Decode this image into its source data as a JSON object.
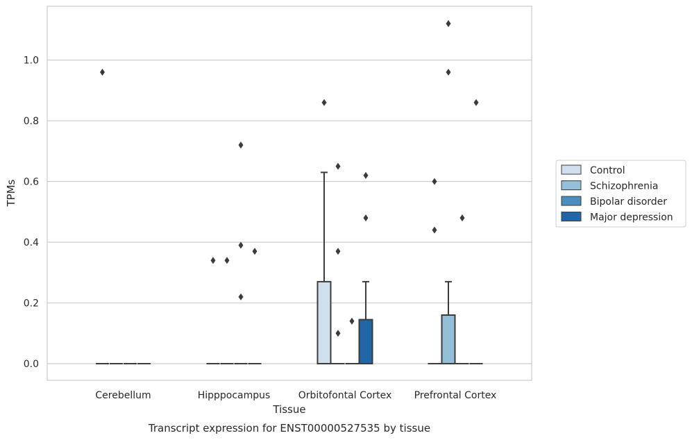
{
  "chart_data": {
    "type": "box",
    "title": "",
    "xlabel": "Tissue",
    "ylabel": "TPMs",
    "caption": "Transcript expression for ENST00000527535 by tissue",
    "ylim": [
      -0.055,
      1.175
    ],
    "yticks": [
      "0.0",
      "0.2",
      "0.4",
      "0.6",
      "0.8",
      "1.0"
    ],
    "grid": "horizontal",
    "legend_position": "right",
    "categories": [
      "Cerebellum",
      "Hipppocampus",
      "Orbitofontal Cortex",
      "Prefrontal Cortex"
    ],
    "series": [
      {
        "name": "Control",
        "color": "#cfdfee",
        "boxes": [
          {
            "q1": 0,
            "median": 0,
            "q3": 0,
            "whisker_low": 0,
            "whisker_high": 0,
            "outliers": [
              0.96
            ]
          },
          {
            "q1": 0,
            "median": 0,
            "q3": 0,
            "whisker_low": 0,
            "whisker_high": 0,
            "outliers": [
              0.34
            ]
          },
          {
            "q1": 0,
            "median": 0,
            "q3": 0.27,
            "whisker_low": 0,
            "whisker_high": 0.63,
            "outliers": [
              0.86
            ]
          },
          {
            "q1": 0,
            "median": 0,
            "q3": 0,
            "whisker_low": 0,
            "whisker_high": 0,
            "outliers": [
              0.6,
              0.44
            ]
          }
        ]
      },
      {
        "name": "Schizophrenia",
        "color": "#94bfd9",
        "boxes": [
          {
            "q1": 0,
            "median": 0,
            "q3": 0,
            "whisker_low": 0,
            "whisker_high": 0,
            "outliers": []
          },
          {
            "q1": 0,
            "median": 0,
            "q3": 0,
            "whisker_low": 0,
            "whisker_high": 0,
            "outliers": [
              0.34
            ]
          },
          {
            "q1": 0,
            "median": 0,
            "q3": 0,
            "whisker_low": 0,
            "whisker_high": 0,
            "outliers": [
              0.65,
              0.37,
              0.1
            ]
          },
          {
            "q1": 0,
            "median": 0,
            "q3": 0.16,
            "whisker_low": 0,
            "whisker_high": 0.27,
            "outliers": [
              1.12,
              0.96
            ]
          }
        ]
      },
      {
        "name": "Bipolar disorder",
        "color": "#4b8dbf",
        "boxes": [
          {
            "q1": 0,
            "median": 0,
            "q3": 0,
            "whisker_low": 0,
            "whisker_high": 0,
            "outliers": []
          },
          {
            "q1": 0,
            "median": 0,
            "q3": 0,
            "whisker_low": 0,
            "whisker_high": 0,
            "outliers": [
              0.72,
              0.39,
              0.22
            ]
          },
          {
            "q1": 0,
            "median": 0,
            "q3": 0,
            "whisker_low": 0,
            "whisker_high": 0,
            "outliers": [
              0.14
            ]
          },
          {
            "q1": 0,
            "median": 0,
            "q3": 0,
            "whisker_low": 0,
            "whisker_high": 0,
            "outliers": [
              0.48
            ]
          }
        ]
      },
      {
        "name": "Major depression",
        "color": "#2166a7",
        "boxes": [
          {
            "q1": 0,
            "median": 0,
            "q3": 0,
            "whisker_low": 0,
            "whisker_high": 0,
            "outliers": []
          },
          {
            "q1": 0,
            "median": 0,
            "q3": 0,
            "whisker_low": 0,
            "whisker_high": 0,
            "outliers": [
              0.37
            ]
          },
          {
            "q1": 0,
            "median": 0,
            "q3": 0.145,
            "whisker_low": 0,
            "whisker_high": 0.27,
            "outliers": [
              0.62,
              0.48
            ]
          },
          {
            "q1": 0,
            "median": 0,
            "q3": 0,
            "whisker_low": 0,
            "whisker_high": 0,
            "outliers": [
              0.86
            ]
          }
        ]
      }
    ]
  }
}
